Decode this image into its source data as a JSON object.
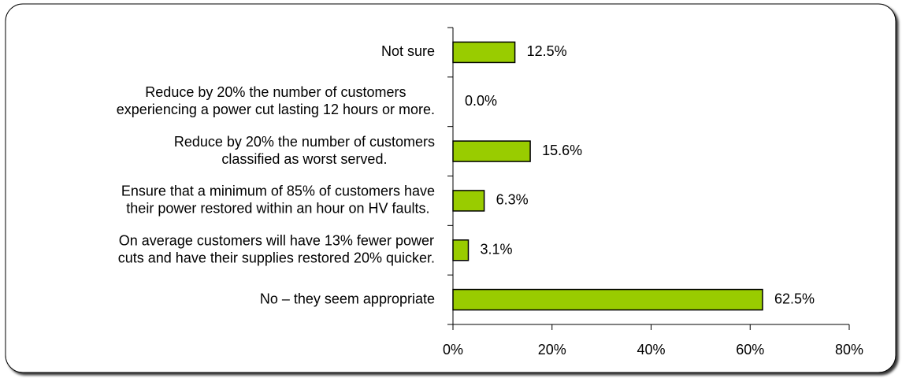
{
  "chart_data": {
    "type": "bar",
    "orientation": "horizontal",
    "categories": [
      [
        "Not sure"
      ],
      [
        "Reduce by 20% the number of customers",
        "experiencing a power cut lasting 12 hours or more."
      ],
      [
        "Reduce by 20% the number of customers",
        "classified as worst served."
      ],
      [
        "Ensure that a minimum of 85% of customers have",
        "their power restored within an hour on HV faults."
      ],
      [
        "On average customers will have 13% fewer power",
        "cuts and have their supplies restored 20% quicker."
      ],
      [
        "No – they seem appropriate"
      ]
    ],
    "values": [
      12.5,
      0.0,
      15.6,
      6.3,
      3.1,
      62.5
    ],
    "value_labels": [
      "12.5%",
      "0.0%",
      "15.6%",
      "6.3%",
      "3.1%",
      "62.5%"
    ],
    "color": "#99cc00",
    "xlim": [
      0,
      80
    ],
    "xticks": [
      {
        "value": 0,
        "label": "0%"
      },
      {
        "value": 20,
        "label": "20%"
      },
      {
        "value": 40,
        "label": "40%"
      },
      {
        "value": 60,
        "label": "60%"
      },
      {
        "value": 80,
        "label": "80%"
      }
    ],
    "grid": false
  }
}
